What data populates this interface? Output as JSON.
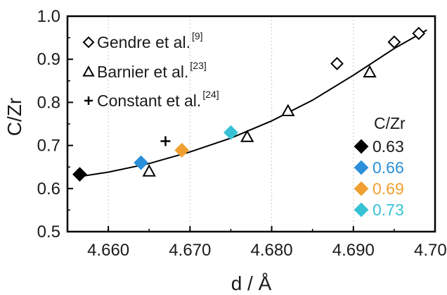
{
  "chart_data": {
    "type": "scatter",
    "xlabel": "d / Å",
    "ylabel": "C/Zr",
    "xlim": [
      4.655,
      4.7
    ],
    "ylim": [
      0.5,
      1.0
    ],
    "x_ticks": [
      "4.660",
      "4.670",
      "4.680",
      "4.690",
      "4.700"
    ],
    "y_ticks": [
      "0.5",
      "0.6",
      "0.7",
      "0.8",
      "0.9",
      "1.0"
    ],
    "grid": "vertical dotted",
    "series": [
      {
        "name": "Gendre et al.",
        "ref": "[9]",
        "marker": "diamond-open",
        "points": [
          {
            "x": 4.688,
            "y": 0.89
          },
          {
            "x": 4.695,
            "y": 0.94
          },
          {
            "x": 4.698,
            "y": 0.96
          }
        ]
      },
      {
        "name": "Barnier et al.",
        "ref": "[23]",
        "marker": "triangle-open",
        "points": [
          {
            "x": 4.665,
            "y": 0.64
          },
          {
            "x": 4.677,
            "y": 0.72
          },
          {
            "x": 4.682,
            "y": 0.78
          },
          {
            "x": 4.692,
            "y": 0.87
          }
        ]
      },
      {
        "name": "Constant et al.",
        "ref": "[24]",
        "marker": "plus",
        "points": [
          {
            "x": 4.667,
            "y": 0.71
          }
        ]
      }
    ],
    "highlighted": {
      "title": "C/Zr",
      "items": [
        {
          "label": "0.63",
          "x": 4.6565,
          "y": 0.633,
          "color": "#000000"
        },
        {
          "label": "0.66",
          "x": 4.664,
          "y": 0.66,
          "color": "#2b8fd9"
        },
        {
          "label": "0.69",
          "x": 4.669,
          "y": 0.689,
          "color": "#f0a030"
        },
        {
          "label": "0.73",
          "x": 4.675,
          "y": 0.73,
          "color": "#36c2d4"
        }
      ]
    },
    "fit_curve": [
      {
        "x": 4.6565,
        "y": 0.628
      },
      {
        "x": 4.66,
        "y": 0.638
      },
      {
        "x": 4.665,
        "y": 0.658
      },
      {
        "x": 4.67,
        "y": 0.685
      },
      {
        "x": 4.675,
        "y": 0.717
      },
      {
        "x": 4.68,
        "y": 0.757
      },
      {
        "x": 4.685,
        "y": 0.805
      },
      {
        "x": 4.69,
        "y": 0.863
      },
      {
        "x": 4.695,
        "y": 0.925
      },
      {
        "x": 4.699,
        "y": 0.968
      }
    ]
  }
}
